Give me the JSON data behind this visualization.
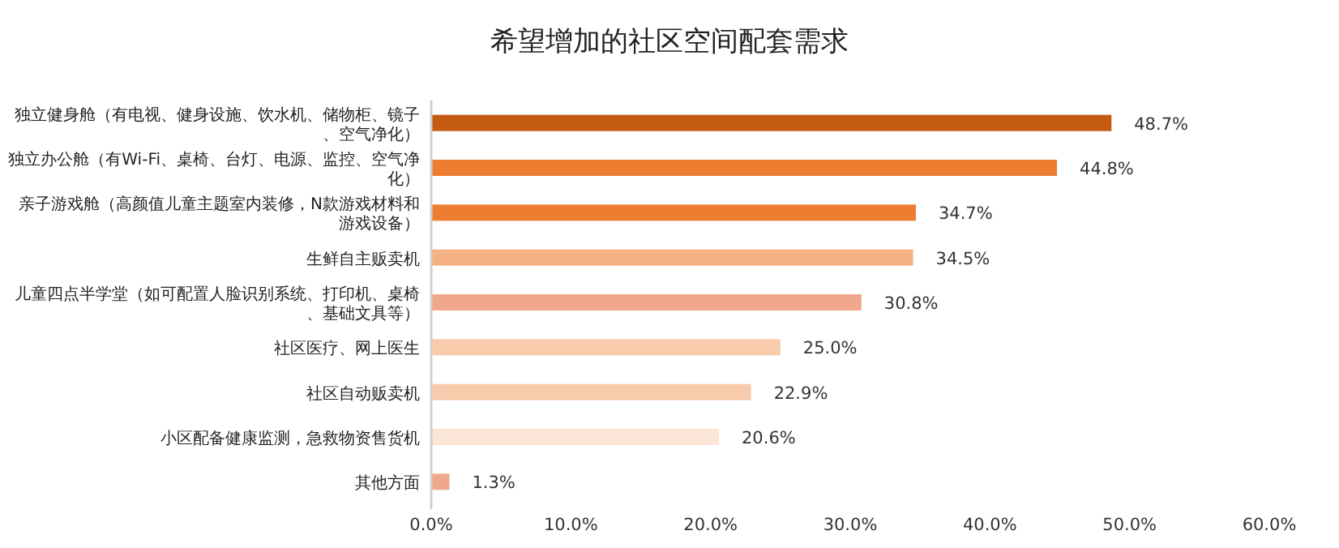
{
  "chart_data": {
    "type": "bar",
    "orientation": "horizontal",
    "title": "希望增加的社区空间配套需求",
    "categories": [
      "独立健身舱（有电视、健身设施、饮水机、储物柜、镜子、空气净化）",
      "独立办公舱（有Wi-Fi、桌椅、台灯、电源、监控、空气净化）",
      "亲子游戏舱（高颜值儿童主题室内装修，N款游戏材料和游戏设备）",
      "生鲜自主贩卖机",
      "儿童四点半学堂（如可配置人脸识别系统、打印机、桌椅、基础文具等）",
      "社区医疗、网上医生",
      "社区自动贩卖机",
      "小区配备健康监测，急救物资售货机",
      "其他方面"
    ],
    "values": [
      48.7,
      44.8,
      34.7,
      34.5,
      30.8,
      25.0,
      22.9,
      20.6,
      1.3
    ],
    "value_labels": [
      "48.7%",
      "44.8%",
      "34.7%",
      "34.5%",
      "30.8%",
      "25.0%",
      "22.9%",
      "20.6%",
      "1.3%"
    ],
    "colors": [
      "#c55a11",
      "#ed7d31",
      "#ed7d31",
      "#f4b183",
      "#f0a78c",
      "#f8cbad",
      "#f8cbad",
      "#fbe5d6",
      "#f0a78c"
    ],
    "xlim": [
      0,
      60
    ],
    "xticks": [
      {
        "value": 0,
        "label": "0.0%"
      },
      {
        "value": 10,
        "label": "10.0%"
      },
      {
        "value": 20,
        "label": "20.0%"
      },
      {
        "value": 30,
        "label": "30.0%"
      },
      {
        "value": 40,
        "label": "40.0%"
      },
      {
        "value": 50,
        "label": "50.0%"
      },
      {
        "value": 60,
        "label": "60.0%"
      }
    ],
    "grid": false
  }
}
